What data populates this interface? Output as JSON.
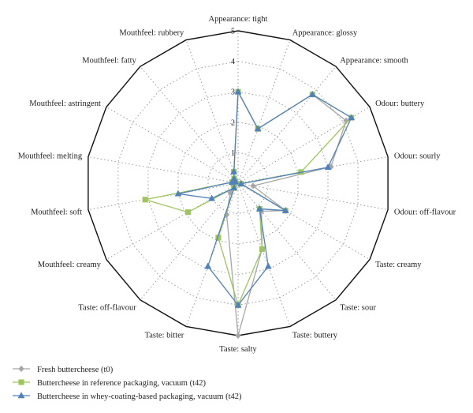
{
  "chart_data": {
    "type": "radar",
    "rmax": 5,
    "ticks": [
      "0",
      "1",
      "2",
      "3",
      "4",
      "5"
    ],
    "axes": [
      "Appearance: tight",
      "Appearance: glossy",
      "Appearance: smooth",
      "Odour: buttery",
      "Odour: sourly",
      "Odour: off-flavour",
      "Taste: creamy",
      "Taste: sour",
      "Taste: buttery",
      "Taste: salty",
      "Taste: bitter",
      "Taste: off-flavour",
      "Mouthfeel: creamy",
      "Mouthfeel: soft",
      "Mouthfeel: melting",
      "Mouthfeel: astringent",
      "Mouthfeel: fatty",
      "Mouthfeel: rubbery"
    ],
    "series": [
      {
        "name": "Fresh buttercheese (t0)",
        "color": "#a6a6a6",
        "marker": "diamond",
        "values": [
          3.0,
          1.9,
          3.8,
          4.1,
          3.1,
          0.5,
          1.8,
          1.2,
          2.3,
          5.0,
          1.1,
          0.4,
          0.1,
          0.2,
          0.1,
          0.1,
          0.2,
          0.4
        ]
      },
      {
        "name": "Buttercheese in reference packaging, vacuum (t42)",
        "color": "#9dc75a",
        "marker": "square",
        "values": [
          3.0,
          1.9,
          3.8,
          4.3,
          2.1,
          0.1,
          1.8,
          1.1,
          2.3,
          4.0,
          1.9,
          0.2,
          1.9,
          3.1,
          0.2,
          0.1,
          0.2,
          0.4
        ]
      },
      {
        "name": "Buttercheese in whey-coating-based packaging, vacuum (t42)",
        "color": "#4f81bd",
        "marker": "triangle",
        "values": [
          3.0,
          1.9,
          3.8,
          4.3,
          3.0,
          0.1,
          1.8,
          1.1,
          2.9,
          4.0,
          2.9,
          0.2,
          1.0,
          2.0,
          0.2,
          0.1,
          0.2,
          0.4
        ]
      }
    ]
  }
}
